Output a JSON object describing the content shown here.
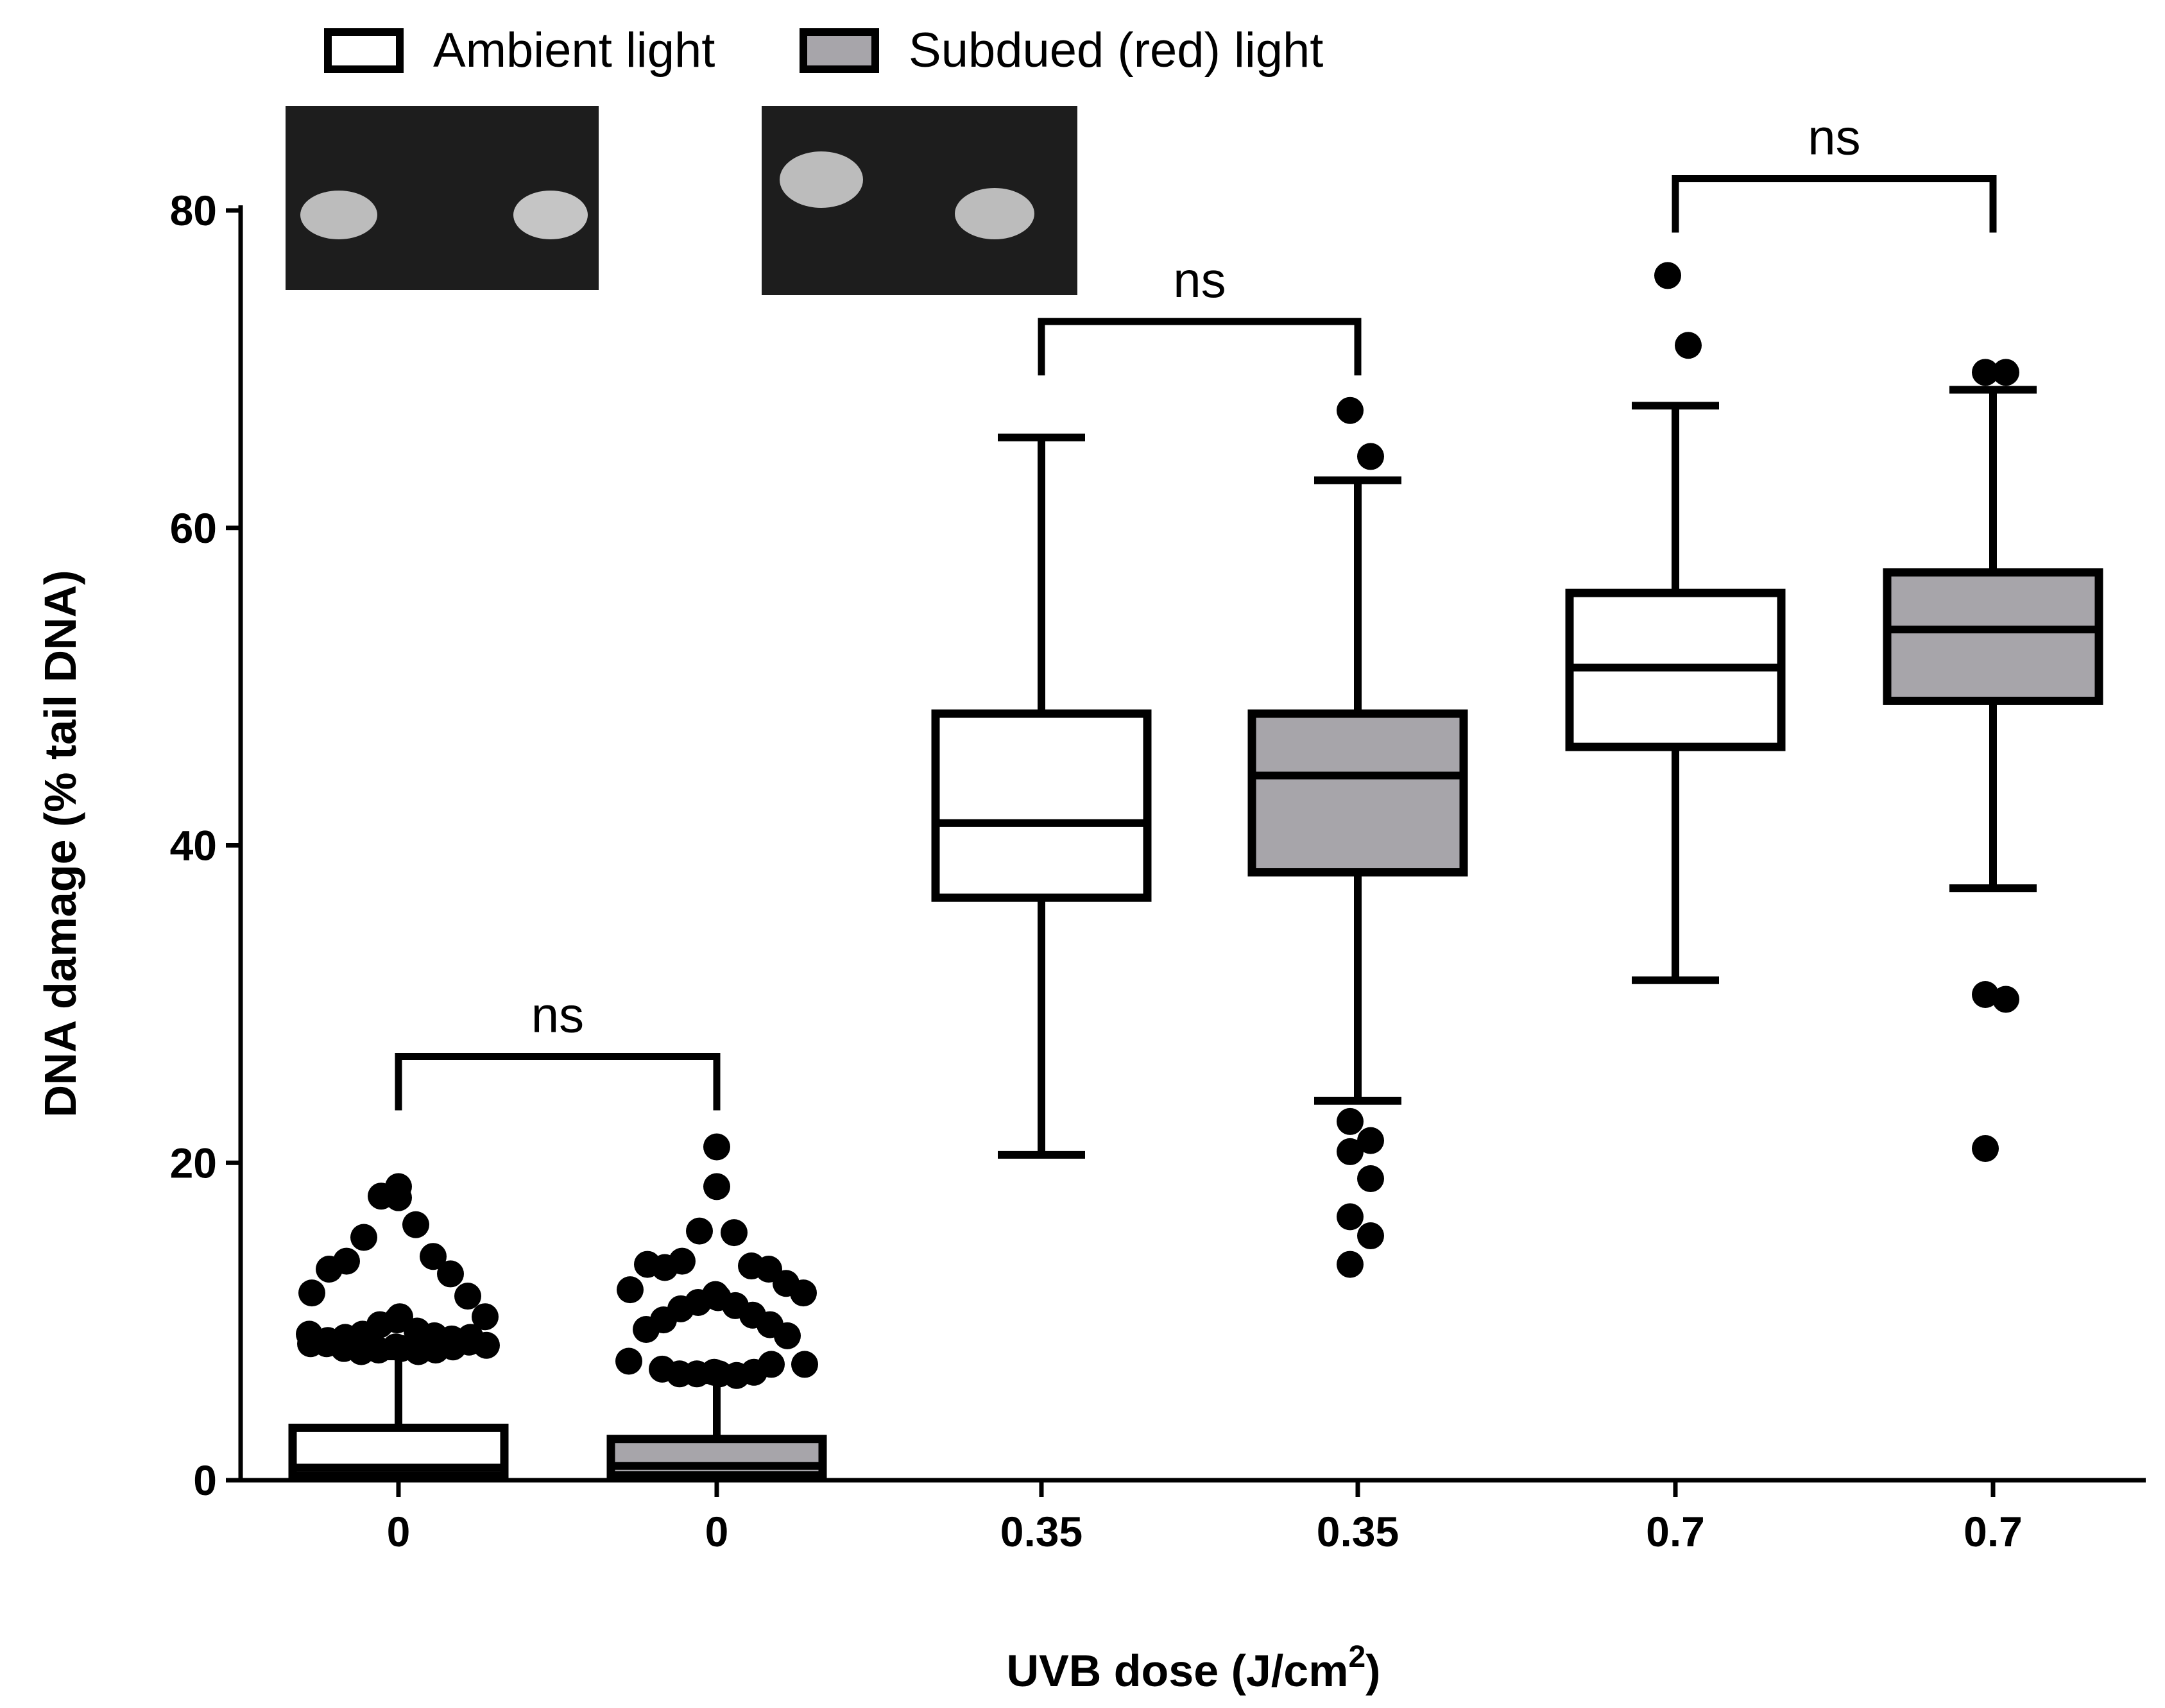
{
  "chart_data": {
    "type": "box",
    "title": "",
    "xlabel": "UVB dose (J/cm",
    "xlabel_superscript": "2",
    "xlabel_suffix": ")",
    "ylabel": "DNA damage (% tail DNA)",
    "ylim": [
      0,
      80
    ],
    "yticks": [
      0,
      20,
      40,
      60,
      80
    ],
    "legend": [
      {
        "name": "Ambient light",
        "color": "#ffffff"
      },
      {
        "name": "Subdued (red) light",
        "color": "#a7a5aa"
      }
    ],
    "categories": [
      "0",
      "0",
      "0.35",
      "0.35",
      "0.7",
      "0.7"
    ],
    "boxes": [
      {
        "dose": "0",
        "series": "Ambient light",
        "fill": "#ffffff",
        "whisker_low": 0,
        "q1": 0.3,
        "median": 0.8,
        "q3": 3.3,
        "whisker_high": 7.8,
        "outliers": [
          18.5,
          17.8,
          17.9,
          16.1,
          15.3,
          14.1,
          13.8,
          13.0,
          13.3,
          11.6,
          11.8,
          10.3,
          10.1,
          10.3,
          9.8,
          9.4,
          9.2,
          9.1,
          9.0,
          8.9,
          8.8,
          8.7,
          8.6,
          8.5,
          8.4,
          8.3,
          8.2,
          8.1,
          8.1,
          8.2,
          8.3,
          8.4,
          8.6,
          9.0,
          9.2
        ]
      },
      {
        "dose": "0",
        "series": "Subdued (red) light",
        "fill": "#a7a5aa",
        "whisker_low": 0,
        "q1": 0.3,
        "median": 0.9,
        "q3": 2.6,
        "whisker_high": 6.3,
        "outliers": [
          21.0,
          18.5,
          15.7,
          15.6,
          13.8,
          13.5,
          13.4,
          13.3,
          13.6,
          12.4,
          12.0,
          11.8,
          11.7,
          11.5,
          11.2,
          11.0,
          10.8,
          10.4,
          10.1,
          9.8,
          9.5,
          9.1,
          7.5,
          7.3,
          6.8,
          6.7,
          6.7,
          6.6,
          6.7,
          6.8,
          7.0,
          7.3
        ]
      },
      {
        "dose": "0.35",
        "series": "Ambient light",
        "fill": "#ffffff",
        "whisker_low": 20.5,
        "q1": 36.7,
        "median": 41.4,
        "q3": 48.3,
        "whisker_high": 65.7,
        "outliers": []
      },
      {
        "dose": "0.35",
        "series": "Subdued (red) light",
        "fill": "#a7a5aa",
        "whisker_low": 23.9,
        "q1": 38.3,
        "median": 44.4,
        "q3": 48.3,
        "whisker_high": 63.0,
        "outliers": [
          67.4,
          64.5,
          22.6,
          21.4,
          20.7,
          19.0,
          16.6,
          15.4,
          13.6
        ]
      },
      {
        "dose": "0.7",
        "series": "Ambient light",
        "fill": "#ffffff",
        "whisker_low": 31.5,
        "q1": 46.2,
        "median": 51.2,
        "q3": 55.9,
        "whisker_high": 67.7,
        "outliers": [
          75.9,
          71.5
        ]
      },
      {
        "dose": "0.7",
        "series": "Subdued (red) light",
        "fill": "#a7a5aa",
        "whisker_low": 37.3,
        "q1": 49.1,
        "median": 53.6,
        "q3": 57.2,
        "whisker_high": 68.7,
        "outliers": [
          69.8,
          69.8,
          30.6,
          30.3,
          20.9
        ]
      }
    ],
    "annotations": [
      {
        "text": "ns",
        "between": [
          0,
          1
        ],
        "level": 26.7
      },
      {
        "text": "ns",
        "between": [
          2,
          3
        ],
        "level": 73.0
      },
      {
        "text": "ns",
        "between": [
          4,
          5
        ],
        "level": 82.0
      }
    ],
    "inset_images": [
      "comet assay image (ambient light)",
      "comet assay image (subdued light)"
    ]
  }
}
